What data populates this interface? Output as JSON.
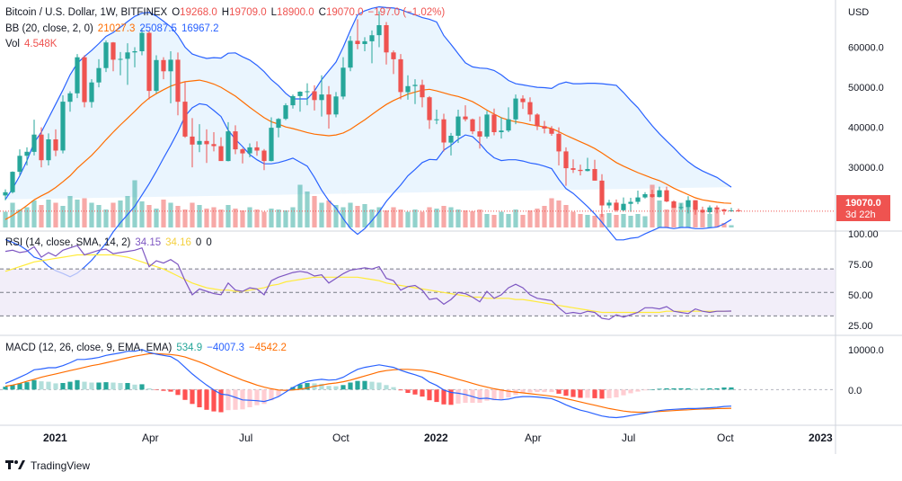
{
  "header": {
    "symbol": "Bitcoin / U.S. Dollar, 1W, BITFINEX",
    "o_label": "O",
    "o_value": "19268.0",
    "h_label": "H",
    "h_value": "19709.0",
    "l_label": "L",
    "l_value": "18900.0",
    "c_label": "C",
    "c_value": "19070.0",
    "change": "−197.0 (−1.02%)"
  },
  "bb_legend": {
    "label": "BB (20, close, 2, 0)",
    "basis": "21027.3",
    "upper": "25087.5",
    "lower": "16967.2"
  },
  "vol_legend": {
    "label": "Vol",
    "value": "4.548K"
  },
  "rsi_legend": {
    "label": "RSI (14, close, SMA, 14, 2)",
    "rsi": "34.15",
    "sma": "34.16",
    "a": "0",
    "b": "0"
  },
  "macd_legend": {
    "label": "MACD (12, 26, close, 9, EMA, EMA)",
    "hist": "534.9",
    "macd": "−4007.3",
    "signal": "−4542.2"
  },
  "price_axis": {
    "currency": "USD",
    "ticks": [
      "60000.0",
      "50000.0",
      "40000.0",
      "30000.0"
    ]
  },
  "rsi_axis": {
    "ticks": [
      "100.00",
      "75.00",
      "50.00",
      "25.00"
    ]
  },
  "macd_axis": {
    "ticks": [
      "10000.0",
      "0.0"
    ]
  },
  "last_price": {
    "value": "19070.0",
    "countdown": "3d 22h"
  },
  "time_axis": [
    "2021",
    "Apr",
    "Jul",
    "Oct",
    "2022",
    "Apr",
    "Jul",
    "Oct",
    "2023"
  ],
  "footer": {
    "brand": "TradingView"
  },
  "colors": {
    "up": "#26a69a",
    "down": "#ef5350",
    "bb_basis": "#ff6d00",
    "bb_band": "#2962ff",
    "bb_fill": "#e3f2fd",
    "rsi": "#7e57c2",
    "rsi_sma": "#ffeb3b",
    "rsi_fill": "#ede7f6",
    "macd": "#2962ff",
    "signal": "#ff6d00"
  },
  "chart_data": {
    "type": "candlestick",
    "title": "Bitcoin / U.S. Dollar, 1W, BITFINEX",
    "interval": "1W",
    "price_scale": [
      15000,
      70000
    ],
    "candles_ohlc": [
      [
        23000,
        24500,
        21800,
        23800
      ],
      [
        23800,
        29000,
        23500,
        28900
      ],
      [
        28900,
        34500,
        28000,
        32900
      ],
      [
        32900,
        35000,
        30500,
        33900
      ],
      [
        33900,
        41900,
        33000,
        38200
      ],
      [
        38200,
        40000,
        30000,
        31800
      ],
      [
        31800,
        38500,
        30500,
        37000
      ],
      [
        37000,
        39500,
        32800,
        34200
      ],
      [
        34200,
        48000,
        33500,
        46400
      ],
      [
        46400,
        49000,
        43900,
        48500
      ],
      [
        48500,
        58300,
        47300,
        57500
      ],
      [
        57500,
        58000,
        45000,
        46300
      ],
      [
        46300,
        52000,
        44900,
        51200
      ],
      [
        51200,
        57000,
        50000,
        54800
      ],
      [
        54800,
        61700,
        53800,
        61200
      ],
      [
        61200,
        61300,
        54000,
        56900
      ],
      [
        56900,
        58800,
        53000,
        57100
      ],
      [
        57100,
        61000,
        50600,
        58700
      ],
      [
        58700,
        60000,
        55000,
        59000
      ],
      [
        59000,
        64800,
        58000,
        63600
      ],
      [
        63600,
        64000,
        47000,
        49100
      ],
      [
        49100,
        58000,
        48500,
        56800
      ],
      [
        56800,
        57500,
        52000,
        54000
      ],
      [
        54000,
        59000,
        46000,
        56900
      ],
      [
        56900,
        58700,
        43000,
        46400
      ],
      [
        46400,
        51400,
        37400,
        37700
      ],
      [
        37700,
        42300,
        30000,
        35700
      ],
      [
        35700,
        40800,
        33800,
        36600
      ],
      [
        36600,
        39500,
        31100,
        35800
      ],
      [
        35800,
        38800,
        34000,
        35300
      ],
      [
        35300,
        37500,
        31600,
        31600
      ],
      [
        31600,
        41300,
        31500,
        39000
      ],
      [
        39000,
        40500,
        33300,
        34500
      ],
      [
        34500,
        34800,
        31000,
        33500
      ],
      [
        33500,
        36000,
        32500,
        35000
      ],
      [
        35000,
        36500,
        32900,
        34200
      ],
      [
        34200,
        34600,
        29300,
        31600
      ],
      [
        31600,
        42500,
        31500,
        39900
      ],
      [
        39900,
        42300,
        37500,
        42100
      ],
      [
        42100,
        46000,
        41800,
        45500
      ],
      [
        45500,
        48200,
        44700,
        47800
      ],
      [
        47800,
        49000,
        43900,
        48900
      ],
      [
        48900,
        51000,
        45500,
        49000
      ],
      [
        49000,
        50500,
        44200,
        46800
      ],
      [
        46800,
        53000,
        42700,
        48200
      ],
      [
        48200,
        50300,
        39700,
        43200
      ],
      [
        43200,
        48800,
        42500,
        47700
      ],
      [
        47700,
        57500,
        47000,
        54900
      ],
      [
        54900,
        62800,
        54000,
        61600
      ],
      [
        61600,
        67000,
        59500,
        60800
      ],
      [
        60800,
        62500,
        59000,
        61500
      ],
      [
        61500,
        64200,
        56000,
        63000
      ],
      [
        63000,
        69000,
        60000,
        65500
      ],
      [
        65500,
        66300,
        55700,
        58700
      ],
      [
        58700,
        59200,
        53300,
        57000
      ],
      [
        57000,
        58300,
        47000,
        48800
      ],
      [
        48800,
        53000,
        46900,
        50300
      ],
      [
        50300,
        52000,
        45800,
        50600
      ],
      [
        50600,
        51900,
        45000,
        47500
      ],
      [
        47500,
        47800,
        39600,
        41800
      ],
      [
        41800,
        44400,
        40800,
        42000
      ],
      [
        42000,
        43400,
        34000,
        36200
      ],
      [
        36200,
        38600,
        33000,
        37900
      ],
      [
        37900,
        44400,
        36100,
        42700
      ],
      [
        42700,
        45500,
        41500,
        42000
      ],
      [
        42000,
        42200,
        38300,
        39000
      ],
      [
        39000,
        42700,
        34700,
        37700
      ],
      [
        37700,
        44100,
        37200,
        43200
      ],
      [
        43200,
        44700,
        38000,
        38800
      ],
      [
        38800,
        42500,
        37200,
        39200
      ],
      [
        39200,
        45000,
        38800,
        42000
      ],
      [
        42000,
        48200,
        40800,
        47200
      ],
      [
        47200,
        48000,
        44600,
        46300
      ],
      [
        46300,
        47500,
        41500,
        43200
      ],
      [
        43200,
        43500,
        39300,
        40300
      ],
      [
        40300,
        41600,
        38500,
        39700
      ],
      [
        39700,
        40300,
        37900,
        38400
      ],
      [
        38400,
        40000,
        30500,
        34000
      ],
      [
        34000,
        35000,
        25400,
        29800
      ],
      [
        29800,
        32000,
        28600,
        29400
      ],
      [
        29400,
        30700,
        28000,
        29100
      ],
      [
        29100,
        32400,
        29000,
        29600
      ],
      [
        29600,
        31900,
        26700,
        26700
      ],
      [
        26700,
        28300,
        17600,
        20500
      ],
      [
        20500,
        21900,
        19800,
        21200
      ],
      [
        21200,
        22000,
        18900,
        19300
      ],
      [
        19300,
        22500,
        19000,
        20900
      ],
      [
        20900,
        22400,
        18900,
        21400
      ],
      [
        21400,
        24200,
        20800,
        22500
      ],
      [
        22500,
        23800,
        22200,
        23300
      ],
      [
        23300,
        24400,
        22400,
        22600
      ],
      [
        22600,
        25200,
        22500,
        24300
      ],
      [
        24300,
        25200,
        21300,
        21500
      ],
      [
        21500,
        21800,
        19900,
        19900
      ],
      [
        19900,
        21000,
        19500,
        20100
      ],
      [
        20100,
        22800,
        18500,
        21800
      ],
      [
        21800,
        21800,
        18200,
        19400
      ],
      [
        19400,
        20200,
        18600,
        18800
      ],
      [
        18800,
        20500,
        18400,
        20000
      ],
      [
        20000,
        20500,
        18500,
        19500
      ],
      [
        19500,
        19700,
        18200,
        19100
      ],
      [
        19100,
        19900,
        18900,
        19270
      ],
      [
        19268,
        19709,
        18900,
        19070
      ]
    ],
    "bb_basis": [
      17000,
      18000,
      19200,
      20500,
      21900,
      22900,
      23800,
      25000,
      26400,
      27900,
      29800,
      31400,
      33000,
      34900,
      36900,
      38800,
      40600,
      42300,
      44000,
      45800,
      47300,
      48400,
      49400,
      50300,
      50900,
      51400,
      51600,
      51800,
      51400,
      50800,
      50000,
      48900,
      47800,
      46400,
      45000,
      43700,
      42400,
      41400,
      40800,
      40100,
      39700,
      39200,
      38700,
      38300,
      38100,
      37900,
      38100,
      38600,
      39500,
      40700,
      41900,
      43200,
      44500,
      45700,
      46700,
      47500,
      48300,
      48800,
      49300,
      49500,
      49100,
      48600,
      48100,
      47700,
      47100,
      46400,
      45400,
      44300,
      43300,
      42400,
      41800,
      41400,
      41100,
      40700,
      40400,
      40100,
      39700,
      38900,
      38000,
      37200,
      36400,
      35600,
      34700,
      33600,
      32400,
      31200,
      30300,
      29500,
      28700,
      28000,
      27300,
      26700,
      25800,
      24800,
      24000,
      23200,
      22400,
      21900,
      21600,
      21300,
      21100,
      21027
    ],
    "bb_upper": [
      22000,
      24700,
      27900,
      31700,
      36200,
      38800,
      42300,
      45800,
      49300,
      53100,
      56000,
      57700,
      59200,
      60900,
      62700,
      63700,
      65000,
      66400,
      67700,
      68500,
      68700,
      67800,
      66500,
      65100,
      62900,
      60000,
      58300,
      57700,
      57200,
      57400,
      57300,
      58500,
      58600,
      57600,
      56800,
      55500,
      53900,
      51900,
      50400,
      48500,
      47100,
      47100,
      47100,
      49100,
      51900,
      54100,
      56300,
      60000,
      64200,
      68100,
      69100,
      69700,
      70100,
      69900,
      69800,
      69400,
      68700,
      68100,
      67400,
      67000,
      66300,
      62900,
      60700,
      58400,
      56100,
      55100,
      54800,
      54700,
      54200,
      53100,
      51700,
      50900,
      50600,
      50300,
      50000,
      49900,
      49700,
      50800,
      51300,
      50900,
      50900,
      51000,
      51000,
      50900,
      50700,
      50500,
      48700,
      46700,
      44900,
      42600,
      40400,
      38400,
      36600,
      34900,
      33000,
      31400,
      30100,
      29100,
      28300,
      27500,
      26300,
      25087
    ],
    "bb_lower": [
      12000,
      11300,
      10500,
      9300,
      7600,
      7000,
      5300,
      4200,
      3500,
      2700,
      3600,
      5100,
      6800,
      8900,
      11100,
      13900,
      16200,
      18200,
      20300,
      23100,
      25900,
      29000,
      32300,
      35500,
      38900,
      42800,
      44900,
      45900,
      45600,
      44200,
      42700,
      39300,
      37000,
      35200,
      33200,
      31900,
      30900,
      30900,
      31200,
      31700,
      32300,
      31300,
      30300,
      27500,
      24300,
      21700,
      19900,
      17200,
      14800,
      13300,
      14700,
      16700,
      18900,
      21500,
      23600,
      25600,
      27900,
      29500,
      31200,
      32000,
      31900,
      34300,
      35500,
      37000,
      38100,
      37700,
      36000,
      33900,
      32400,
      31700,
      31900,
      31900,
      31600,
      31100,
      30800,
      30300,
      29700,
      27000,
      24700,
      23500,
      21900,
      20200,
      18400,
      16300,
      14100,
      11900,
      11900,
      12300,
      12500,
      13400,
      14200,
      15000,
      15000,
      14700,
      15000,
      15000,
      14700,
      14700,
      14900,
      15100,
      15900,
      16967
    ],
    "volume": [
      0.35,
      0.55,
      0.4,
      0.45,
      0.6,
      0.5,
      0.62,
      0.55,
      0.48,
      0.7,
      0.62,
      0.65,
      0.55,
      0.5,
      0.4,
      0.55,
      0.6,
      0.7,
      1.05,
      0.58,
      0.5,
      0.42,
      0.62,
      0.55,
      0.48,
      0.4,
      0.55,
      0.5,
      0.42,
      0.45,
      0.4,
      0.5,
      0.42,
      0.38,
      0.45,
      0.4,
      0.35,
      0.42,
      0.4,
      0.38,
      0.45,
      0.95,
      0.8,
      0.7,
      0.55,
      0.6,
      0.5,
      0.45,
      0.55,
      0.48,
      0.52,
      0.4,
      0.45,
      0.38,
      0.45,
      0.4,
      0.35,
      0.4,
      0.35,
      0.45,
      0.42,
      0.48,
      0.45,
      0.4,
      0.38,
      0.36,
      0.4,
      0.3,
      0.28,
      0.35,
      0.3,
      0.4,
      0.28,
      0.38,
      0.42,
      0.48,
      0.65,
      0.6,
      0.5,
      0.35,
      0.3,
      0.28,
      0.26,
      0.3,
      0.32,
      0.28,
      0.3,
      0.26,
      0.3,
      0.25,
      0.95,
      0.6,
      0.4,
      0.5,
      0.55,
      0.6,
      0.58,
      0.35,
      0.3,
      0.4,
      0.1,
      0.05
    ],
    "rsi_scale": [
      15,
      100
    ],
    "rsi": [
      85,
      86,
      84,
      85,
      89,
      80,
      84,
      81,
      86,
      88,
      90,
      82,
      84,
      86,
      87,
      83,
      84,
      85,
      86,
      88,
      72,
      77,
      75,
      78,
      74,
      60,
      48,
      53,
      51,
      49,
      48,
      58,
      52,
      51,
      54,
      53,
      48,
      60,
      63,
      65,
      67,
      68,
      67,
      64,
      65,
      58,
      62,
      66,
      69,
      70,
      71,
      70,
      72,
      62,
      60,
      52,
      55,
      56,
      52,
      44,
      45,
      40,
      44,
      50,
      49,
      46,
      42,
      51,
      45,
      48,
      54,
      57,
      54,
      48,
      45,
      44,
      43,
      37,
      32,
      33,
      32,
      34,
      33,
      28,
      27,
      31,
      29,
      31,
      33,
      37,
      37,
      36,
      38,
      34,
      33,
      32,
      36,
      34,
      33,
      34,
      34,
      34.15
    ],
    "rsi_sma": [
      68,
      70,
      72,
      74,
      76,
      77,
      78,
      79,
      80,
      81,
      82,
      82,
      82,
      82,
      82,
      82,
      81,
      80,
      78,
      76,
      74,
      72,
      70,
      67,
      64,
      61,
      58,
      56,
      54,
      53,
      52,
      52,
      51,
      51,
      52,
      53,
      54,
      56,
      57,
      59,
      60,
      61,
      62,
      63,
      63,
      63,
      63,
      63,
      63,
      63,
      62,
      61,
      60,
      58,
      57,
      56,
      55,
      54,
      53,
      52,
      51,
      50,
      49,
      48,
      47,
      46,
      46,
      45,
      45,
      45,
      45,
      44,
      44,
      43,
      42,
      41,
      40,
      39,
      38,
      37,
      36,
      35,
      34,
      33,
      33,
      33,
      33,
      33,
      33,
      33,
      33,
      33,
      34,
      34,
      34,
      34,
      34,
      34,
      34,
      34,
      34,
      34.16
    ],
    "rsi_bands": {
      "upper": 70,
      "middle": 50,
      "lower": 30
    },
    "macd_scale": [
      -8000,
      12500
    ],
    "macd_line": [
      1500,
      2200,
      3000,
      3800,
      4800,
      5000,
      5300,
      5300,
      5800,
      6500,
      7300,
      7300,
      7500,
      7800,
      8300,
      8600,
      8900,
      9300,
      9300,
      9700,
      9000,
      8600,
      8300,
      8000,
      7000,
      5400,
      3800,
      2400,
      1100,
      -100,
      -1100,
      -1300,
      -1900,
      -2500,
      -2600,
      -2700,
      -2900,
      -2400,
      -1700,
      -600,
      500,
      1400,
      2000,
      2300,
      2500,
      2300,
      2400,
      3000,
      4000,
      4900,
      5400,
      5700,
      6000,
      5700,
      5400,
      4700,
      4100,
      3600,
      3000,
      1800,
      1000,
      -100,
      -700,
      -900,
      -1200,
      -1700,
      -2200,
      -2100,
      -2400,
      -2500,
      -2300,
      -1900,
      -1700,
      -1700,
      -1800,
      -2000,
      -2200,
      -2900,
      -3700,
      -4400,
      -5000,
      -5400,
      -5900,
      -6400,
      -6700,
      -6800,
      -6600,
      -6300,
      -6000,
      -5700,
      -5400,
      -5100,
      -4900,
      -4800,
      -4700,
      -4600,
      -4600,
      -4500,
      -4400,
      -4300,
      -4100,
      -4007
    ],
    "macd_signal": [
      800,
      1100,
      1500,
      2000,
      2500,
      3000,
      3400,
      3800,
      4200,
      4600,
      5000,
      5400,
      5800,
      6100,
      6500,
      6900,
      7300,
      7700,
      8100,
      8400,
      8700,
      8700,
      8600,
      8500,
      8300,
      7900,
      7300,
      6700,
      6000,
      5200,
      4400,
      3700,
      3000,
      2300,
      1700,
      1100,
      600,
      200,
      -100,
      -200,
      -100,
      100,
      400,
      800,
      1100,
      1400,
      1600,
      1900,
      2300,
      2800,
      3300,
      3800,
      4300,
      4600,
      4800,
      4900,
      4900,
      4800,
      4700,
      4400,
      4000,
      3500,
      3000,
      2500,
      2000,
      1500,
      1000,
      600,
      200,
      -100,
      -400,
      -600,
      -800,
      -1000,
      -1200,
      -1400,
      -1600,
      -1900,
      -2200,
      -2600,
      -3000,
      -3400,
      -3800,
      -4200,
      -4600,
      -4900,
      -5200,
      -5400,
      -5500,
      -5500,
      -5400,
      -5300,
      -5200,
      -5100,
      -5000,
      -4900,
      -4800,
      -4700,
      -4700,
      -4600,
      -4600,
      -4542
    ]
  }
}
